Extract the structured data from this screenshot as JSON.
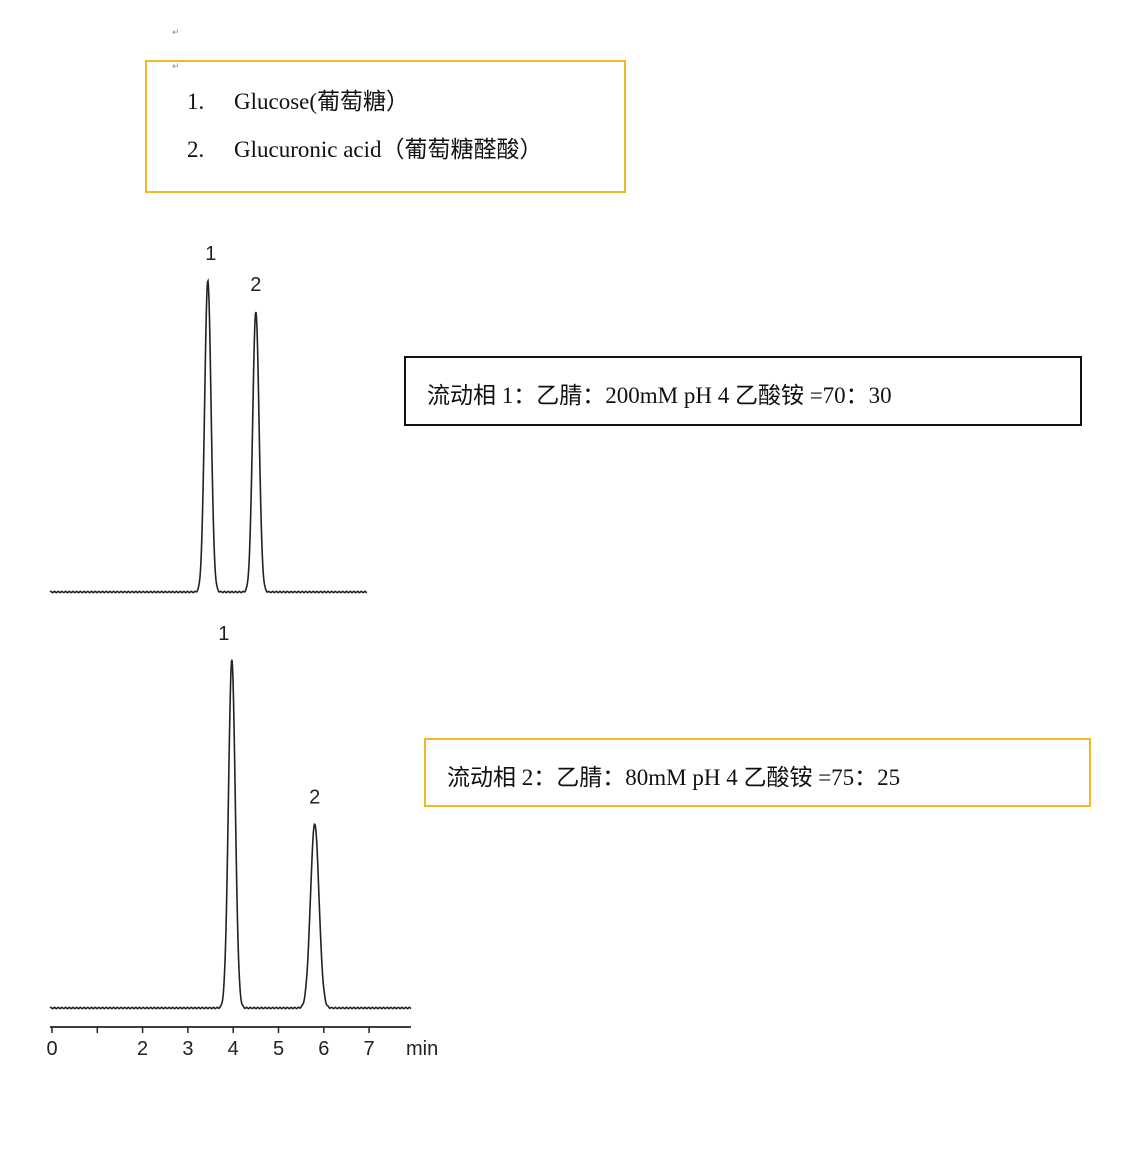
{
  "legend": {
    "items": [
      {
        "number": "1.",
        "label": "Glucose(葡萄糖）"
      },
      {
        "number": "2.",
        "label": "Glucuronic acid（葡萄糖醛酸）"
      }
    ],
    "border_color": "#f2b824"
  },
  "mobile_phases": [
    {
      "text": "流动相  1：乙腈：200mM pH 4 乙酸铵  =70：30",
      "border_color": "#111111"
    },
    {
      "text": "流动相  2：乙腈：80mM pH 4  乙酸铵  =75：25",
      "border_color": "#f2b824"
    }
  ],
  "chart_data": [
    {
      "type": "line",
      "description_of": "chromatogram",
      "xlabel": "min",
      "xlim": [
        0,
        7.0
      ],
      "peaks": [
        {
          "label": "1",
          "retention_time": 3.44,
          "relative_height": 1.0
        },
        {
          "label": "2",
          "retention_time": 4.5,
          "relative_height": 0.9
        }
      ]
    },
    {
      "type": "line",
      "xlabel": "min",
      "xlim": [
        0,
        7.8
      ],
      "x_ticks": [
        0,
        1,
        2,
        3,
        4,
        5,
        6,
        7
      ],
      "x_tick_labels": [
        "0",
        "",
        "2",
        "3",
        "4",
        "5",
        "6",
        "7"
      ],
      "peaks": [
        {
          "label": "1",
          "retention_time": 3.97,
          "relative_height": 1.0
        },
        {
          "label": "2",
          "retention_time": 5.8,
          "relative_height": 0.53
        }
      ]
    }
  ]
}
